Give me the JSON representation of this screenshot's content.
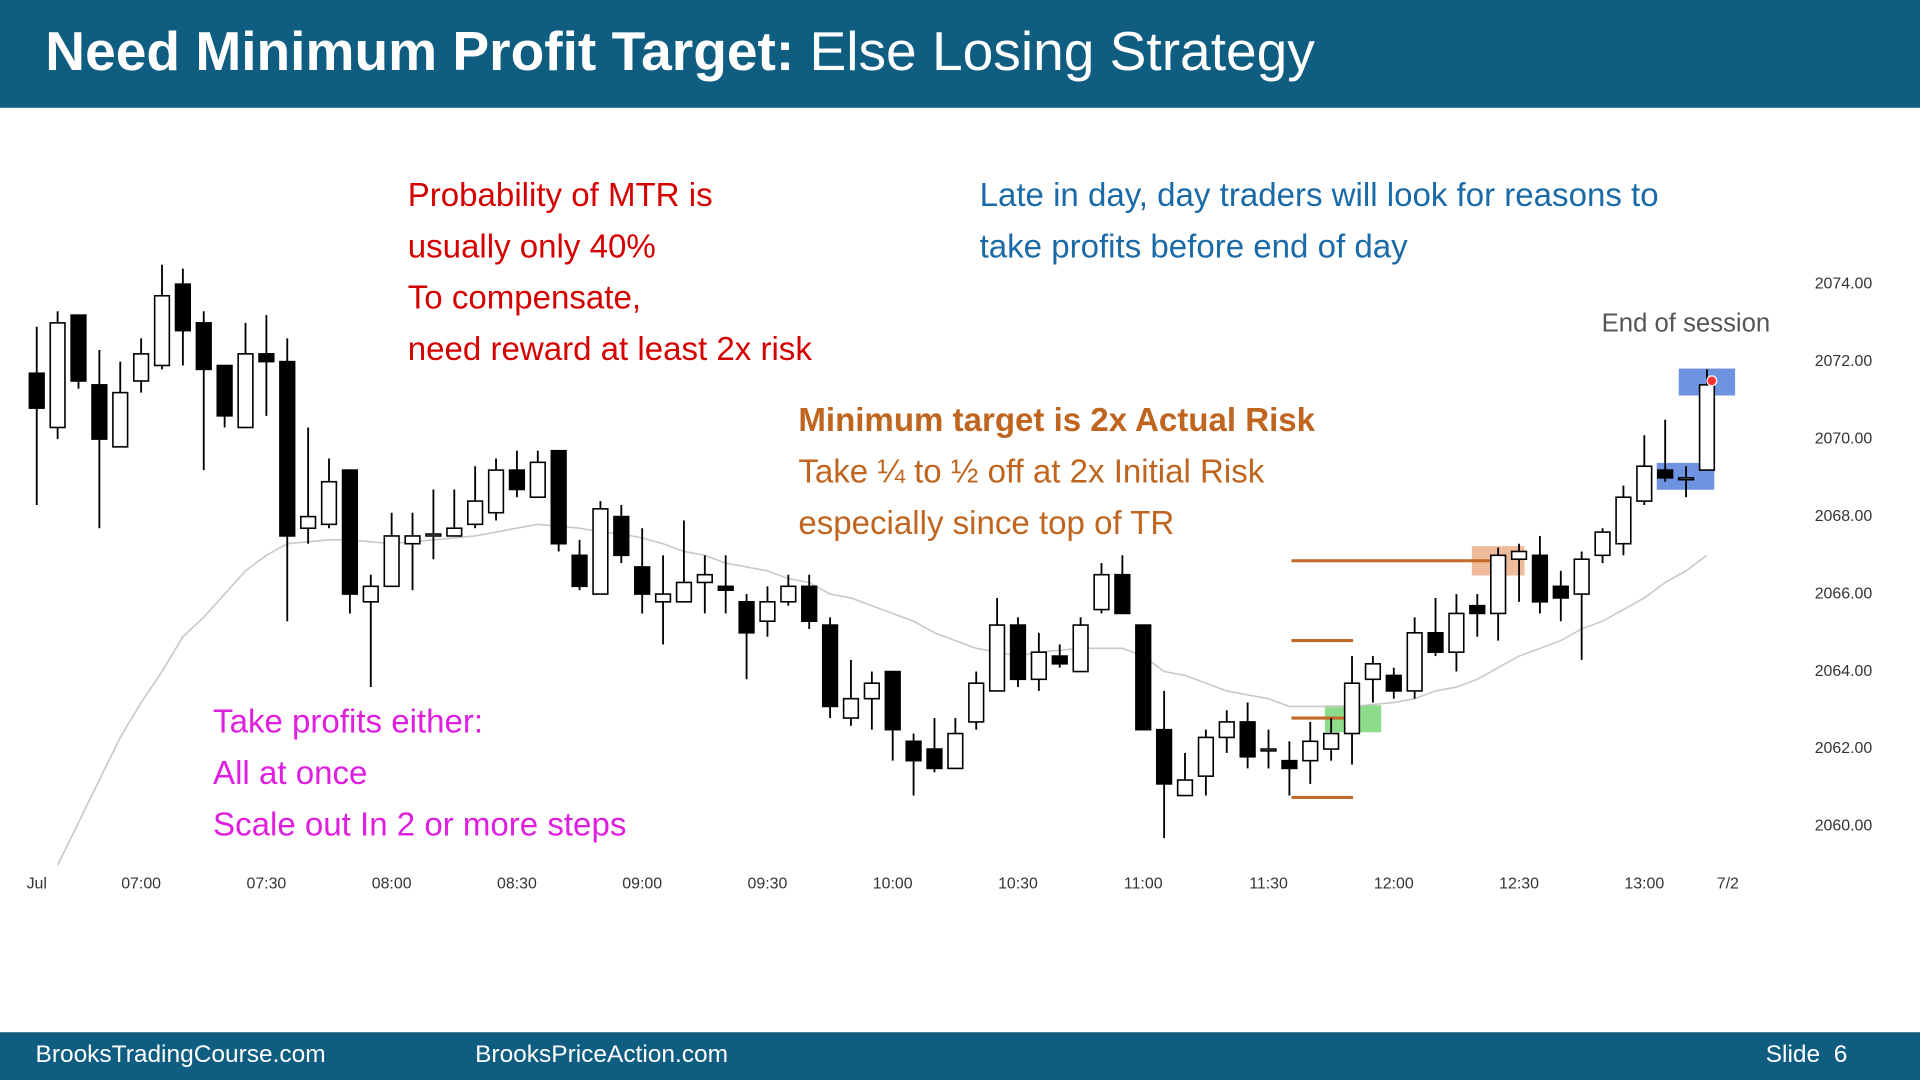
{
  "header": {
    "title_bold": "Need Minimum Profit Target:",
    "title_rest": "Else Losing Strategy"
  },
  "annotations": {
    "mtr": [
      "Probability of MTR is",
      "usually only 40%",
      "To compensate,",
      "need reward at least 2x risk"
    ],
    "late_day": [
      "Late in day, day traders will look for reasons to",
      "take profits before end of day"
    ],
    "end_of_session": "End of session",
    "target": [
      "Minimum target is 2x Actual Risk",
      "Take ¼ to ½ off at 2x Initial Risk",
      "especially since top of TR"
    ],
    "take_profits": [
      "Take profits either:",
      "All at once",
      "Scale out In 2 or more steps"
    ]
  },
  "footer": {
    "left": "BrooksTradingCourse.com",
    "middle": "BrooksPriceAction.com",
    "slide": "Slide  6"
  },
  "chart_data": {
    "type": "candlestick",
    "categories": [
      "Jul",
      null,
      null,
      null,
      null,
      "07:00",
      null,
      null,
      null,
      null,
      null,
      "07:30",
      null,
      null,
      null,
      null,
      null,
      "08:00",
      null,
      null,
      null,
      null,
      null,
      "08:30",
      null,
      null,
      null,
      null,
      null,
      "09:00",
      null,
      null,
      null,
      null,
      null,
      "09:30",
      null,
      null,
      null,
      null,
      null,
      "10:00",
      null,
      null,
      null,
      null,
      null,
      "10:30",
      null,
      null,
      null,
      null,
      null,
      "11:00",
      null,
      null,
      null,
      null,
      null,
      "11:30",
      null,
      null,
      null,
      null,
      null,
      "12:00",
      null,
      null,
      null,
      null,
      null,
      "12:30",
      null,
      null,
      null,
      null,
      null,
      "13:00",
      null,
      null,
      null,
      "7/2"
    ],
    "open": [
      2071.7,
      2070.3,
      2073.2,
      2071.4,
      2069.8,
      2071.5,
      2071.9,
      2074.0,
      2073.0,
      2071.9,
      2070.3,
      2072.2,
      2072.0,
      2067.7,
      2067.8,
      2069.2,
      2065.8,
      2066.2,
      2067.3,
      2067.5,
      2067.5,
      2067.8,
      2068.1,
      2069.2,
      2068.5,
      2069.7,
      2067.0,
      2066.0,
      2068.0,
      2066.7,
      2065.8,
      2065.8,
      2066.3,
      2066.2,
      2065.8,
      2065.3,
      2065.8,
      2066.2,
      2065.2,
      2062.8,
      2063.3,
      2064.0,
      2062.2,
      2062.0,
      2061.5,
      2062.7,
      2063.5,
      2065.2,
      2063.8,
      2064.4,
      2064.0,
      2065.6,
      2066.5,
      2065.2,
      2062.5,
      2060.8,
      2061.3,
      2062.3,
      2062.7,
      2062.0,
      2061.7,
      2061.7,
      2062.0,
      2062.4,
      2063.8,
      2063.9,
      2063.5,
      2065.0,
      2064.5,
      2065.7,
      2065.5,
      2066.9,
      2067.0,
      2066.2,
      2066.0,
      2067.0,
      2067.3,
      2068.4,
      2069.2,
      2069.0,
      2069.2,
      null
    ],
    "high": [
      2072.9,
      2073.3,
      2073.2,
      2072.3,
      2072.0,
      2072.6,
      2074.5,
      2074.4,
      2073.3,
      2071.9,
      2073.0,
      2073.2,
      2072.6,
      2070.3,
      2069.5,
      2069.2,
      2066.5,
      2068.1,
      2068.1,
      2068.7,
      2068.7,
      2069.3,
      2069.5,
      2069.7,
      2069.7,
      2069.7,
      2067.4,
      2068.4,
      2068.3,
      2067.7,
      2067.0,
      2067.9,
      2067.0,
      2067.0,
      2066.0,
      2066.2,
      2066.5,
      2066.5,
      2065.4,
      2064.3,
      2064.0,
      2064.0,
      2062.4,
      2062.8,
      2062.8,
      2064.0,
      2065.9,
      2065.4,
      2065.0,
      2064.7,
      2065.4,
      2066.8,
      2067.0,
      2065.2,
      2063.5,
      2061.9,
      2062.5,
      2063.0,
      2063.2,
      2062.5,
      2062.2,
      2062.7,
      2062.8,
      2064.4,
      2064.4,
      2064.1,
      2065.4,
      2065.9,
      2066.0,
      2066.0,
      2067.2,
      2067.3,
      2067.5,
      2066.6,
      2067.1,
      2067.7,
      2068.8,
      2070.1,
      2070.5,
      2069.3,
      2071.8,
      null
    ],
    "low": [
      2068.3,
      2070.0,
      2071.3,
      2067.7,
      2069.8,
      2071.2,
      2071.8,
      2071.9,
      2069.2,
      2070.3,
      2070.3,
      2070.6,
      2065.3,
      2067.3,
      2067.7,
      2065.5,
      2063.6,
      2066.2,
      2066.1,
      2066.9,
      2067.5,
      2067.7,
      2067.9,
      2068.5,
      2068.5,
      2067.1,
      2066.1,
      2066.0,
      2066.8,
      2065.5,
      2064.7,
      2065.8,
      2065.5,
      2065.5,
      2063.8,
      2064.9,
      2065.7,
      2065.1,
      2062.8,
      2062.6,
      2062.5,
      2061.7,
      2060.8,
      2061.4,
      2061.5,
      2062.5,
      2063.5,
      2063.6,
      2063.5,
      2064.1,
      2064.0,
      2065.5,
      2065.5,
      2062.5,
      2059.7,
      2060.8,
      2060.8,
      2061.9,
      2061.5,
      2061.5,
      2060.8,
      2061.1,
      2061.7,
      2061.6,
      2063.2,
      2063.3,
      2063.3,
      2064.4,
      2064.0,
      2064.9,
      2064.8,
      2065.8,
      2065.5,
      2065.3,
      2064.3,
      2066.8,
      2067.0,
      2068.3,
      2068.9,
      2068.5,
      2069.2,
      null
    ],
    "close": [
      2070.8,
      2073.0,
      2071.5,
      2070.0,
      2071.2,
      2072.2,
      2073.7,
      2072.8,
      2071.8,
      2070.6,
      2072.2,
      2072.0,
      2067.5,
      2068.0,
      2068.9,
      2066.0,
      2066.2,
      2067.5,
      2067.5,
      2067.55,
      2067.7,
      2068.4,
      2069.2,
      2068.7,
      2069.4,
      2067.3,
      2066.2,
      2068.2,
      2067.0,
      2066.0,
      2066.0,
      2066.3,
      2066.5,
      2066.1,
      2065.0,
      2065.8,
      2066.2,
      2065.3,
      2063.1,
      2063.3,
      2063.7,
      2062.5,
      2061.7,
      2061.5,
      2062.4,
      2063.7,
      2065.2,
      2063.8,
      2064.5,
      2064.2,
      2065.2,
      2066.5,
      2065.5,
      2062.5,
      2061.1,
      2061.2,
      2062.3,
      2062.7,
      2061.8,
      2062.0,
      2061.5,
      2062.2,
      2062.4,
      2063.7,
      2064.2,
      2063.5,
      2065.0,
      2064.5,
      2065.5,
      2065.5,
      2067.0,
      2067.1,
      2065.8,
      2065.9,
      2066.9,
      2067.6,
      2068.5,
      2069.3,
      2069.0,
      2069.0,
      2071.4,
      null
    ],
    "ema": [
      null,
      2059.0,
      2060.1,
      2061.2,
      2062.3,
      2063.2,
      2064.0,
      2064.9,
      2065.4,
      2066.0,
      2066.6,
      2067.0,
      2067.3,
      2067.35,
      2067.4,
      2067.4,
      2067.35,
      2067.3,
      2067.35,
      2067.4,
      2067.45,
      2067.5,
      2067.6,
      2067.7,
      2067.8,
      2067.75,
      2067.7,
      2067.6,
      2067.55,
      2067.45,
      2067.3,
      2067.1,
      2067.0,
      2066.8,
      2066.7,
      2066.6,
      2066.4,
      2066.3,
      2066.0,
      2065.9,
      2065.7,
      2065.5,
      2065.3,
      2065.0,
      2064.8,
      2064.6,
      2064.5,
      2064.4,
      2064.5,
      2064.55,
      2064.6,
      2064.6,
      2064.6,
      2064.4,
      2064.0,
      2063.9,
      2063.7,
      2063.5,
      2063.4,
      2063.3,
      2063.1,
      2063.1,
      2063.1,
      2063.1,
      2063.15,
      2063.2,
      2063.3,
      2063.5,
      2063.6,
      2063.8,
      2064.1,
      2064.4,
      2064.6,
      2064.8,
      2065.1,
      2065.3,
      2065.6,
      2065.9,
      2066.3,
      2066.6,
      2067.0,
      null
    ],
    "ema_color": "#c8c8c8",
    "levels": [
      2066.86,
      2064.8,
      2062.8,
      2060.75
    ],
    "level_color": "#c46a28",
    "ylim": [
      2059,
      2077.5
    ],
    "yticks": [
      {
        "value": 2060,
        "label": "2060.00"
      },
      {
        "value": 2062,
        "label": "2062.00"
      },
      {
        "value": 2064,
        "label": "2064.00"
      },
      {
        "value": 2066,
        "label": "2066.00"
      },
      {
        "value": 2068,
        "label": "2068.00"
      },
      {
        "value": 2070,
        "label": "2070.00"
      },
      {
        "value": 2072,
        "label": "2072.00"
      },
      {
        "value": 2074,
        "label": "2074.00"
      }
    ]
  }
}
